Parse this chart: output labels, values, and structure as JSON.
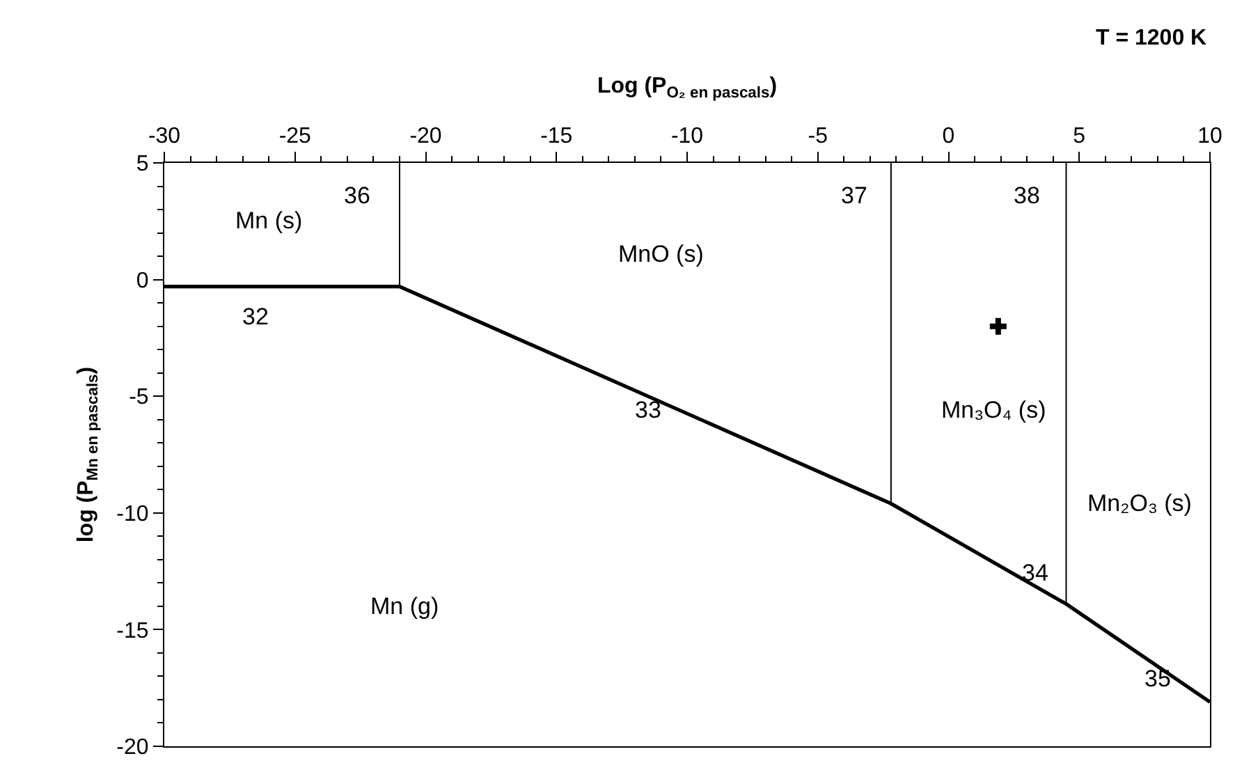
{
  "chart_data": {
    "type": "line",
    "xlabel": "Log (P$_{O₂ en pascals}$)",
    "ylabel": "log (P$_{Mn en pascals}$)",
    "xlim": [
      -30,
      10
    ],
    "xticks": [
      -30,
      -25,
      -20,
      -15,
      -10,
      -5,
      0,
      5,
      10
    ],
    "ylim": [
      -20,
      5
    ],
    "yticks": [
      5,
      0,
      -5,
      -10,
      -15,
      -20
    ],
    "grid": false,
    "marker": "none",
    "line_style": "solid",
    "series": [
      {
        "color": "#000000",
        "x": [
          -30,
          -21,
          -2.2,
          4.5,
          10
        ],
        "values": [
          -0.3,
          -0.3,
          -9.6,
          -13.9,
          -18.1
        ]
      },
      {
        "color": "#000000",
        "x": [
          -21,
          -21
        ],
        "values": [
          5,
          -0.3
        ]
      },
      {
        "color": "#000000",
        "x": [
          -2.2,
          -2.2
        ],
        "values": [
          5,
          -9.6
        ]
      },
      {
        "color": "#000000",
        "x": [
          4.5,
          4.5
        ],
        "values": [
          5,
          -13.9
        ]
      },
      {
        "type": "scatter",
        "marker": "cross",
        "color": "#000000",
        "x": [
          1.9
        ],
        "values": [
          -2
        ]
      }
    ],
    "annotations": [
      "T = 1200 K",
      "Mn (s)",
      "36",
      "32",
      "MnO (s)",
      "33",
      "37",
      "38",
      "Mn₃O₄ (s)",
      "Mn₂O₃ (s)",
      "34",
      "35",
      "Mn (g)"
    ]
  }
}
